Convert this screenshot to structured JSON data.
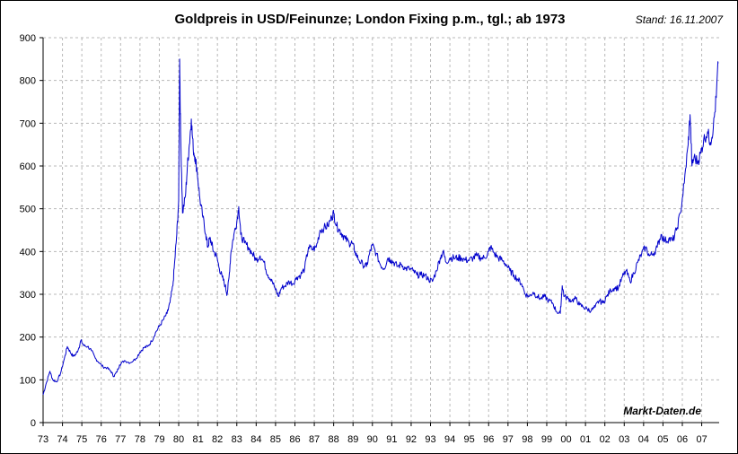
{
  "chart_data": {
    "type": "line",
    "title": "Goldpreis in USD/Feinunze; London Fixing p.m., tgl.; ab 1973",
    "stand": "Stand: 16.11.2007",
    "watermark": "Markt-Daten.de",
    "xlabel": "",
    "ylabel": "",
    "xlim": [
      1973.0,
      2007.9
    ],
    "ylim": [
      0,
      900
    ],
    "y_ticks": [
      0,
      100,
      200,
      300,
      400,
      500,
      600,
      700,
      800,
      900
    ],
    "x_ticks": [
      {
        "label": "73",
        "year": 1973
      },
      {
        "label": "74",
        "year": 1974
      },
      {
        "label": "75",
        "year": 1975
      },
      {
        "label": "76",
        "year": 1976
      },
      {
        "label": "77",
        "year": 1977
      },
      {
        "label": "78",
        "year": 1978
      },
      {
        "label": "79",
        "year": 1979
      },
      {
        "label": "80",
        "year": 1980
      },
      {
        "label": "81",
        "year": 1981
      },
      {
        "label": "82",
        "year": 1982
      },
      {
        "label": "83",
        "year": 1983
      },
      {
        "label": "84",
        "year": 1984
      },
      {
        "label": "85",
        "year": 1985
      },
      {
        "label": "86",
        "year": 1986
      },
      {
        "label": "87",
        "year": 1987
      },
      {
        "label": "88",
        "year": 1988
      },
      {
        "label": "89",
        "year": 1989
      },
      {
        "label": "90",
        "year": 1990
      },
      {
        "label": "91",
        "year": 1991
      },
      {
        "label": "92",
        "year": 1992
      },
      {
        "label": "93",
        "year": 1993
      },
      {
        "label": "94",
        "year": 1994
      },
      {
        "label": "95",
        "year": 1995
      },
      {
        "label": "96",
        "year": 1996
      },
      {
        "label": "97",
        "year": 1997
      },
      {
        "label": "98",
        "year": 1998
      },
      {
        "label": "99",
        "year": 1999
      },
      {
        "label": "00",
        "year": 2000
      },
      {
        "label": "01",
        "year": 2001
      },
      {
        "label": "02",
        "year": 2002
      },
      {
        "label": "03",
        "year": 2003
      },
      {
        "label": "04",
        "year": 2004
      },
      {
        "label": "05",
        "year": 2005
      },
      {
        "label": "06",
        "year": 2006
      },
      {
        "label": "07",
        "year": 2007
      }
    ],
    "grid": true,
    "series": [
      {
        "name": "Goldpreis USD/Feinunze",
        "color": "#0000cc",
        "points": [
          [
            1973.0,
            65
          ],
          [
            1973.15,
            90
          ],
          [
            1973.35,
            120
          ],
          [
            1973.5,
            100
          ],
          [
            1973.7,
            95
          ],
          [
            1973.9,
            115
          ],
          [
            1974.1,
            150
          ],
          [
            1974.25,
            178
          ],
          [
            1974.4,
            165
          ],
          [
            1974.55,
            155
          ],
          [
            1974.7,
            160
          ],
          [
            1974.85,
            175
          ],
          [
            1974.95,
            192
          ],
          [
            1975.1,
            180
          ],
          [
            1975.3,
            178
          ],
          [
            1975.5,
            168
          ],
          [
            1975.7,
            150
          ],
          [
            1975.9,
            140
          ],
          [
            1976.1,
            130
          ],
          [
            1976.3,
            128
          ],
          [
            1976.5,
            120
          ],
          [
            1976.65,
            108
          ],
          [
            1976.8,
            118
          ],
          [
            1976.95,
            135
          ],
          [
            1977.2,
            145
          ],
          [
            1977.5,
            140
          ],
          [
            1977.8,
            150
          ],
          [
            1978.0,
            165
          ],
          [
            1978.2,
            175
          ],
          [
            1978.4,
            178
          ],
          [
            1978.6,
            190
          ],
          [
            1978.8,
            210
          ],
          [
            1979.0,
            225
          ],
          [
            1979.2,
            240
          ],
          [
            1979.4,
            255
          ],
          [
            1979.55,
            280
          ],
          [
            1979.7,
            320
          ],
          [
            1979.8,
            380
          ],
          [
            1979.9,
            440
          ],
          [
            1980.0,
            520
          ],
          [
            1980.05,
            850
          ],
          [
            1980.1,
            680
          ],
          [
            1980.2,
            490
          ],
          [
            1980.35,
            530
          ],
          [
            1980.45,
            600
          ],
          [
            1980.55,
            650
          ],
          [
            1980.65,
            710
          ],
          [
            1980.75,
            640
          ],
          [
            1980.85,
            620
          ],
          [
            1980.95,
            590
          ],
          [
            1981.1,
            520
          ],
          [
            1981.25,
            480
          ],
          [
            1981.4,
            440
          ],
          [
            1981.5,
            410
          ],
          [
            1981.6,
            430
          ],
          [
            1981.7,
            420
          ],
          [
            1981.8,
            400
          ],
          [
            1981.95,
            390
          ],
          [
            1982.1,
            360
          ],
          [
            1982.25,
            340
          ],
          [
            1982.4,
            320
          ],
          [
            1982.5,
            300
          ],
          [
            1982.6,
            340
          ],
          [
            1982.7,
            400
          ],
          [
            1982.85,
            440
          ],
          [
            1983.0,
            470
          ],
          [
            1983.1,
            505
          ],
          [
            1983.2,
            440
          ],
          [
            1983.4,
            420
          ],
          [
            1983.6,
            410
          ],
          [
            1983.8,
            395
          ],
          [
            1984.0,
            380
          ],
          [
            1984.2,
            390
          ],
          [
            1984.4,
            375
          ],
          [
            1984.6,
            345
          ],
          [
            1984.8,
            335
          ],
          [
            1985.0,
            310
          ],
          [
            1985.15,
            295
          ],
          [
            1985.3,
            315
          ],
          [
            1985.5,
            320
          ],
          [
            1985.7,
            330
          ],
          [
            1985.9,
            325
          ],
          [
            1986.1,
            340
          ],
          [
            1986.3,
            345
          ],
          [
            1986.5,
            360
          ],
          [
            1986.7,
            410
          ],
          [
            1986.9,
            405
          ],
          [
            1987.1,
            410
          ],
          [
            1987.3,
            450
          ],
          [
            1987.5,
            455
          ],
          [
            1987.7,
            460
          ],
          [
            1987.9,
            480
          ],
          [
            1988.0,
            490
          ],
          [
            1988.15,
            460
          ],
          [
            1988.3,
            450
          ],
          [
            1988.45,
            440
          ],
          [
            1988.6,
            430
          ],
          [
            1988.8,
            420
          ],
          [
            1988.95,
            420
          ],
          [
            1989.1,
            400
          ],
          [
            1989.3,
            380
          ],
          [
            1989.5,
            370
          ],
          [
            1989.7,
            365
          ],
          [
            1989.85,
            395
          ],
          [
            1990.0,
            415
          ],
          [
            1990.2,
            395
          ],
          [
            1990.4,
            370
          ],
          [
            1990.6,
            360
          ],
          [
            1990.8,
            385
          ],
          [
            1990.95,
            380
          ],
          [
            1991.1,
            375
          ],
          [
            1991.3,
            365
          ],
          [
            1991.5,
            370
          ],
          [
            1991.7,
            360
          ],
          [
            1991.9,
            360
          ],
          [
            1992.1,
            355
          ],
          [
            1992.3,
            345
          ],
          [
            1992.5,
            345
          ],
          [
            1992.7,
            345
          ],
          [
            1992.9,
            335
          ],
          [
            1993.1,
            330
          ],
          [
            1993.3,
            355
          ],
          [
            1993.5,
            385
          ],
          [
            1993.65,
            400
          ],
          [
            1993.8,
            375
          ],
          [
            1994.0,
            385
          ],
          [
            1994.2,
            385
          ],
          [
            1994.4,
            385
          ],
          [
            1994.6,
            385
          ],
          [
            1994.8,
            380
          ],
          [
            1995.0,
            380
          ],
          [
            1995.2,
            385
          ],
          [
            1995.4,
            390
          ],
          [
            1995.6,
            385
          ],
          [
            1995.8,
            385
          ],
          [
            1996.0,
            400
          ],
          [
            1996.1,
            410
          ],
          [
            1996.3,
            395
          ],
          [
            1996.5,
            385
          ],
          [
            1996.7,
            380
          ],
          [
            1996.9,
            370
          ],
          [
            1997.1,
            355
          ],
          [
            1997.3,
            345
          ],
          [
            1997.5,
            335
          ],
          [
            1997.7,
            325
          ],
          [
            1997.9,
            300
          ],
          [
            1998.1,
            295
          ],
          [
            1998.3,
            305
          ],
          [
            1998.5,
            295
          ],
          [
            1998.7,
            290
          ],
          [
            1998.9,
            295
          ],
          [
            1999.1,
            285
          ],
          [
            1999.3,
            280
          ],
          [
            1999.5,
            260
          ],
          [
            1999.7,
            255
          ],
          [
            1999.8,
            320
          ],
          [
            1999.9,
            295
          ],
          [
            2000.1,
            290
          ],
          [
            2000.3,
            285
          ],
          [
            2000.5,
            290
          ],
          [
            2000.7,
            275
          ],
          [
            2000.9,
            270
          ],
          [
            2001.1,
            265
          ],
          [
            2001.3,
            262
          ],
          [
            2001.5,
            270
          ],
          [
            2001.7,
            285
          ],
          [
            2001.9,
            280
          ],
          [
            2002.1,
            295
          ],
          [
            2002.3,
            310
          ],
          [
            2002.5,
            315
          ],
          [
            2002.7,
            315
          ],
          [
            2002.9,
            340
          ],
          [
            2003.1,
            355
          ],
          [
            2003.3,
            330
          ],
          [
            2003.5,
            350
          ],
          [
            2003.7,
            375
          ],
          [
            2003.9,
            395
          ],
          [
            2004.1,
            410
          ],
          [
            2004.3,
            390
          ],
          [
            2004.5,
            395
          ],
          [
            2004.7,
            410
          ],
          [
            2004.9,
            440
          ],
          [
            2005.1,
            425
          ],
          [
            2005.3,
            430
          ],
          [
            2005.5,
            425
          ],
          [
            2005.7,
            450
          ],
          [
            2005.9,
            490
          ],
          [
            2006.1,
            560
          ],
          [
            2006.3,
            650
          ],
          [
            2006.4,
            720
          ],
          [
            2006.5,
            600
          ],
          [
            2006.6,
            620
          ],
          [
            2006.8,
            610
          ],
          [
            2006.95,
            630
          ],
          [
            2007.1,
            660
          ],
          [
            2007.3,
            680
          ],
          [
            2007.45,
            655
          ],
          [
            2007.6,
            690
          ],
          [
            2007.75,
            760
          ],
          [
            2007.85,
            840
          ]
        ]
      }
    ]
  }
}
